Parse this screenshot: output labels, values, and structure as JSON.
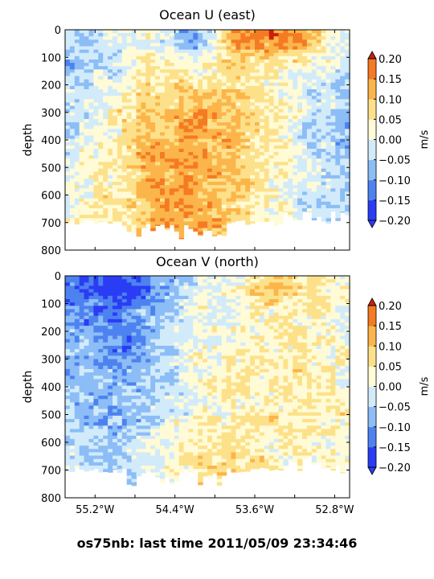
{
  "footer": {
    "text": "os75nb: last time 2011/05/09 23:34:46"
  },
  "colorbar": {
    "levels": [
      -0.2,
      -0.15,
      -0.1,
      -0.05,
      0.0,
      0.05,
      0.1,
      0.15,
      0.2
    ],
    "colors": [
      "#2b3cf5",
      "#4d82f0",
      "#8cbdf6",
      "#d2ebfb",
      "#fffbd6",
      "#fde18a",
      "#fcb54a",
      "#f57a24",
      "#cc1f0c"
    ]
  },
  "chart_data": [
    {
      "type": "heatmap",
      "title": "Ocean U (east)",
      "ylabel": "depth",
      "xlabel": "",
      "units": "m/s",
      "xlim": [
        -55.5,
        -52.65
      ],
      "ylim": [
        800,
        0
      ],
      "yticks": [
        0,
        100,
        200,
        300,
        400,
        500,
        600,
        700,
        800
      ],
      "colorbar_ticks": [
        "0.20",
        "0.15",
        "0.10",
        "0.05",
        "0.00",
        "−0.05",
        "−0.10",
        "−0.15",
        "−0.20"
      ],
      "x": [
        -55.4,
        -55.0,
        -54.6,
        -54.2,
        -53.8,
        -53.4,
        -53.0,
        -52.7
      ],
      "y": [
        50,
        150,
        300,
        500,
        650
      ],
      "values": [
        [
          -0.06,
          -0.03,
          0.02,
          -0.08,
          0.12,
          0.17,
          0.12,
          -0.03
        ],
        [
          -0.05,
          0.0,
          0.05,
          0.03,
          0.07,
          0.04,
          -0.02,
          -0.04
        ],
        [
          -0.03,
          0.04,
          0.1,
          0.13,
          0.11,
          0.05,
          -0.03,
          -0.05
        ],
        [
          0.0,
          0.06,
          0.13,
          0.13,
          0.12,
          0.04,
          -0.03,
          -0.07
        ],
        [
          0.02,
          0.05,
          0.12,
          0.14,
          0.08,
          0.03,
          -0.03,
          -0.06
        ]
      ]
    },
    {
      "type": "heatmap",
      "title": "Ocean V (north)",
      "ylabel": "depth",
      "xlabel": "",
      "units": "m/s",
      "xlim": [
        -55.5,
        -52.65
      ],
      "ylim": [
        800,
        0
      ],
      "yticks": [
        0,
        100,
        200,
        300,
        400,
        500,
        600,
        700,
        800
      ],
      "xticks": [
        "55.2°W",
        "54.4°W",
        "53.6°W",
        "52.8°W"
      ],
      "colorbar_ticks": [
        "0.20",
        "0.15",
        "0.10",
        "0.05",
        "0.00",
        "−0.05",
        "−0.10",
        "−0.15",
        "−0.20"
      ],
      "x": [
        -55.4,
        -55.0,
        -54.6,
        -54.2,
        -53.8,
        -53.4,
        -53.0,
        -52.7
      ],
      "y": [
        50,
        150,
        300,
        500,
        650
      ],
      "values": [
        [
          -0.14,
          -0.2,
          -0.12,
          -0.03,
          0.03,
          0.1,
          0.05,
          0.02
        ],
        [
          -0.1,
          -0.13,
          -0.06,
          0.0,
          0.02,
          0.03,
          0.04,
          0.02
        ],
        [
          -0.07,
          -0.11,
          -0.06,
          0.01,
          0.03,
          0.04,
          0.05,
          0.03
        ],
        [
          -0.05,
          -0.08,
          -0.03,
          0.02,
          0.05,
          0.06,
          0.05,
          0.04
        ],
        [
          -0.04,
          -0.05,
          0.0,
          0.05,
          0.07,
          0.04,
          0.04,
          0.05
        ]
      ]
    }
  ]
}
